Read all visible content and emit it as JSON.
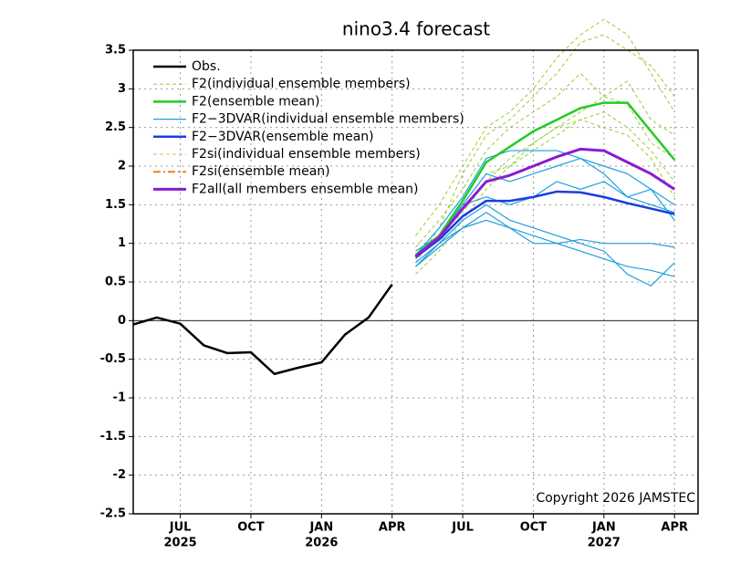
{
  "chart_data": {
    "type": "line",
    "title": "nino3.4 forecast",
    "annotation": "Copyright 2026 JAMSTEC",
    "xlim": [
      "2025-05",
      "2027-05"
    ],
    "xticks": [
      {
        "value": "2025-07",
        "label": "JUL"
      },
      {
        "value": "2025-10",
        "label": "OCT"
      },
      {
        "value": "2026-01",
        "label": "JAN"
      },
      {
        "value": "2026-04",
        "label": "APR"
      },
      {
        "value": "2026-07",
        "label": "JUL"
      },
      {
        "value": "2026-10",
        "label": "OCT"
      },
      {
        "value": "2027-01",
        "label": "JAN"
      },
      {
        "value": "2027-04",
        "label": "APR"
      }
    ],
    "xtick_years": [
      {
        "value": "2025-07",
        "label": "2025"
      },
      {
        "value": "2026-01",
        "label": "2026"
      },
      {
        "value": "2027-01",
        "label": "2027"
      }
    ],
    "ylim": [
      -2.5,
      3.5
    ],
    "yticks": [
      -2.5,
      -2,
      -1.5,
      -1,
      -0.5,
      0,
      0.5,
      1,
      1.5,
      2,
      2.5,
      3,
      3.5
    ],
    "grid": true,
    "legend": "upper left",
    "series": [
      {
        "name": "Obs.",
        "color": "#000000",
        "style": "solid",
        "width": 2.5,
        "x": [
          "2025-05",
          "2025-06",
          "2025-07",
          "2025-08",
          "2025-09",
          "2025-10",
          "2025-11",
          "2025-12",
          "2026-01",
          "2026-02",
          "2026-03",
          "2026-04"
        ],
        "values": [
          -0.05,
          0.04,
          -0.04,
          -0.32,
          -0.42,
          -0.41,
          -0.69,
          -0.61,
          -0.54,
          -0.18,
          0.04,
          0.47
        ]
      },
      {
        "name": "F2(individual ensemble members)",
        "color": "#9acd32",
        "style": "dashed",
        "width": 1,
        "x": [
          "2026-05",
          "2026-06",
          "2026-07",
          "2026-08",
          "2026-09",
          "2026-10",
          "2026-11",
          "2026-12",
          "2027-01",
          "2027-02",
          "2027-03",
          "2027-04"
        ],
        "members": [
          [
            0.75,
            1.2,
            1.9,
            2.4,
            2.6,
            2.9,
            3.2,
            3.6,
            3.7,
            3.5,
            3.3,
            2.9
          ],
          [
            0.95,
            1.3,
            1.7,
            2.2,
            2.5,
            2.7,
            2.9,
            3.2,
            2.9,
            3.1,
            2.6,
            2.4
          ],
          [
            0.6,
            0.9,
            1.3,
            1.7,
            2.0,
            2.3,
            2.5,
            2.7,
            2.9,
            2.8,
            2.3,
            2.1
          ],
          [
            0.7,
            1.0,
            1.5,
            1.9,
            2.0,
            2.2,
            2.4,
            2.6,
            2.7,
            2.5,
            2.2,
            1.8
          ],
          [
            1.1,
            1.5,
            2.0,
            2.5,
            2.7,
            3.0,
            3.4,
            3.7,
            3.9,
            3.7,
            3.2,
            2.7
          ],
          [
            0.8,
            1.1,
            1.4,
            1.8,
            2.1,
            2.3,
            2.5,
            2.6,
            2.5,
            2.4,
            2.1,
            1.6
          ]
        ]
      },
      {
        "name": "F2(ensemble mean)",
        "color": "#22cc22",
        "style": "solid",
        "width": 2.5,
        "x": [
          "2026-05",
          "2026-06",
          "2026-07",
          "2026-08",
          "2026-09",
          "2026-10",
          "2026-11",
          "2026-12",
          "2027-01",
          "2027-02",
          "2027-03",
          "2027-04"
        ],
        "values": [
          0.85,
          1.1,
          1.55,
          2.05,
          2.25,
          2.45,
          2.6,
          2.75,
          2.82,
          2.82,
          2.45,
          2.08
        ]
      },
      {
        "name": "F2−3DVAR(individual ensemble members)",
        "color": "#1e9fe0",
        "style": "solid",
        "width": 1.2,
        "x": [
          "2026-05",
          "2026-06",
          "2026-07",
          "2026-08",
          "2026-09",
          "2026-10",
          "2026-11",
          "2026-12",
          "2027-01",
          "2027-02",
          "2027-03",
          "2027-04"
        ],
        "members": [
          [
            0.85,
            1.2,
            1.6,
            2.1,
            2.2,
            2.2,
            2.2,
            2.1,
            2.0,
            1.9,
            1.7,
            1.5
          ],
          [
            0.7,
            1.0,
            1.3,
            1.5,
            1.3,
            1.2,
            1.1,
            1.0,
            0.9,
            0.6,
            0.45,
            0.75
          ],
          [
            0.9,
            1.1,
            1.5,
            1.6,
            1.5,
            1.6,
            1.8,
            1.7,
            1.8,
            1.6,
            1.7,
            1.3
          ],
          [
            0.75,
            1.0,
            1.2,
            1.3,
            1.2,
            1.0,
            1.0,
            1.05,
            1.0,
            1.0,
            1.0,
            0.95
          ],
          [
            0.8,
            1.1,
            1.5,
            1.9,
            1.8,
            1.9,
            2.0,
            2.1,
            1.9,
            1.6,
            1.5,
            1.4
          ],
          [
            0.7,
            0.95,
            1.2,
            1.4,
            1.2,
            1.1,
            1.0,
            0.9,
            0.8,
            0.7,
            0.65,
            0.57
          ]
        ]
      },
      {
        "name": "F2−3DVAR(ensemble mean)",
        "color": "#1a3de0",
        "style": "solid",
        "width": 2.5,
        "x": [
          "2026-05",
          "2026-06",
          "2026-07",
          "2026-08",
          "2026-09",
          "2026-10",
          "2026-11",
          "2026-12",
          "2027-01",
          "2027-02",
          "2027-03",
          "2027-04"
        ],
        "values": [
          0.82,
          1.05,
          1.35,
          1.55,
          1.55,
          1.6,
          1.67,
          1.66,
          1.6,
          1.52,
          1.45,
          1.38
        ]
      },
      {
        "name": "F2si(individual ensemble members)",
        "color": "#e8b060",
        "style": "dashed",
        "width": 1,
        "members": []
      },
      {
        "name": "F2si(ensemble mean)",
        "color": "#f08020",
        "style": "dashdot",
        "width": 2,
        "values": []
      },
      {
        "name": "F2all(all members ensemble mean)",
        "color": "#8a1ad0",
        "style": "solid",
        "width": 3,
        "x": [
          "2026-05",
          "2026-06",
          "2026-07",
          "2026-08",
          "2026-09",
          "2026-10",
          "2026-11",
          "2026-12",
          "2027-01",
          "2027-02",
          "2027-03",
          "2027-04"
        ],
        "values": [
          0.83,
          1.08,
          1.45,
          1.8,
          1.88,
          2.0,
          2.12,
          2.22,
          2.2,
          2.05,
          1.9,
          1.7
        ]
      }
    ]
  }
}
